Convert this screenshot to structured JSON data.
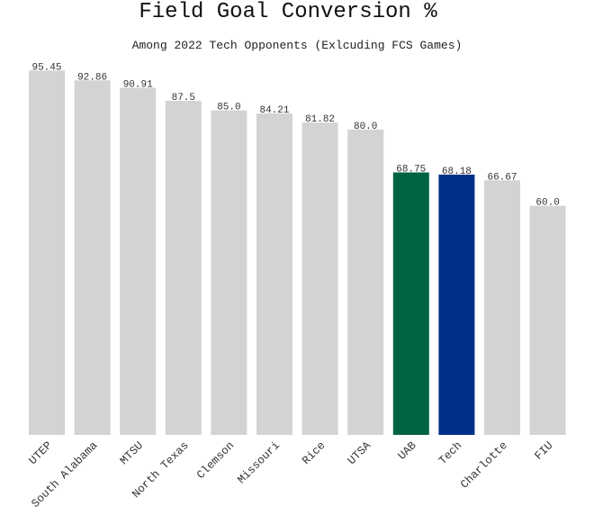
{
  "chart_data": {
    "type": "bar",
    "title": "Field Goal Conversion %",
    "subtitle": "Among 2022 Tech Opponents (Exlcuding FCS Games)",
    "xlabel": "",
    "ylabel": "",
    "ylim": [
      0,
      100
    ],
    "grid": false,
    "categories": [
      "UTEP",
      "South Alabama",
      "MTSU",
      "North Texas",
      "Clemson",
      "Missouri",
      "Rice",
      "UTSA",
      "UAB",
      "Tech",
      "Charlotte",
      "FIU"
    ],
    "values": [
      95.45,
      92.86,
      90.91,
      87.5,
      85.0,
      84.21,
      81.82,
      80.0,
      68.75,
      68.18,
      66.67,
      60.0
    ],
    "value_labels": [
      "95.45",
      "92.86",
      "90.91",
      "87.5",
      "85.0",
      "84.21",
      "81.82",
      "80.0",
      "68.75",
      "68.18",
      "66.67",
      "60.0"
    ],
    "colors": {
      "default": "#d3d3d3",
      "UAB": "#006341",
      "Tech": "#002f8b"
    }
  }
}
